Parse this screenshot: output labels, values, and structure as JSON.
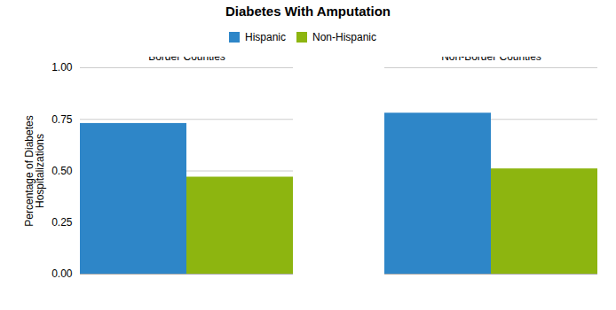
{
  "chart_data": {
    "type": "bar",
    "title": "Diabetes With Amputation",
    "ylabel": "Percentage of Diabetes\nHospitalizations",
    "categories": [
      "Border Counties",
      "Non-Border Counties"
    ],
    "series": [
      {
        "name": "Hispanic",
        "color": "#2E86C8",
        "values": [
          0.73,
          0.78
        ]
      },
      {
        "name": "Non-Hispanic",
        "color": "#8DB510",
        "values": [
          0.47,
          0.51
        ]
      }
    ],
    "ylim": [
      0.0,
      1.0
    ],
    "yticks": [
      {
        "value": 0.0,
        "label": "0.00"
      },
      {
        "value": 0.25,
        "label": "0.25"
      },
      {
        "value": 0.5,
        "label": "0.50"
      },
      {
        "value": 0.75,
        "label": "0.75"
      },
      {
        "value": 1.0,
        "label": "1.00"
      }
    ],
    "grid": true,
    "legend": "top"
  }
}
